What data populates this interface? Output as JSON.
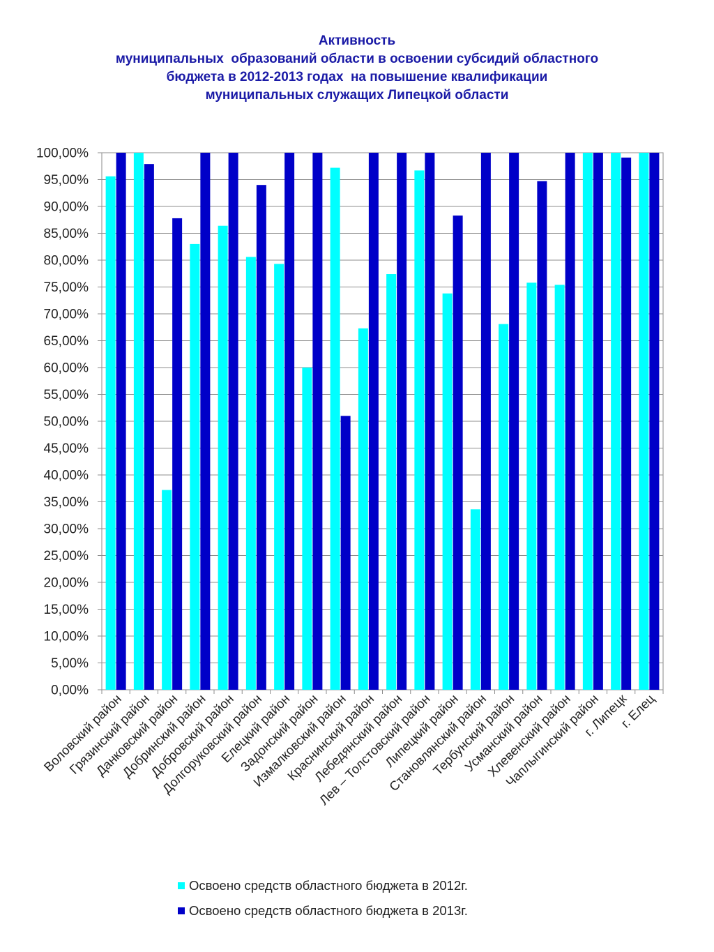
{
  "title": {
    "lines": [
      "Активность",
      "муниципальных  образований области в освоении субсидий областного",
      "бюджета в 2012-2013 годах  на повышение квалификации",
      "муниципальных служащих Липецкой области"
    ]
  },
  "chart_data": {
    "type": "bar",
    "title": "Активность муниципальных  образований области в освоении субсидий областного бюджета в 2012-2013 годах  на повышение квалификации муниципальных служащих Липецкой области",
    "categories": [
      "Воловский район",
      "Грязинский район",
      "Данковский район",
      "Добринский район",
      "Добровский район",
      "Долгоруковский район",
      "Елецкий район",
      "Задонский район",
      "Измалковский район",
      "Краснинский район",
      "Лебедянский район",
      "Лев – Толстовский район",
      "Липецкий район",
      "Становлянский район",
      "Тербунский район",
      "Усманский район",
      "Хлевенский район",
      "Чаплыгинский район",
      "г. Липецк",
      "г. Елец"
    ],
    "series": [
      {
        "name": "Освоено средств областного бюджета в 2012г.",
        "color": "#00FFFF",
        "values": [
          95.6,
          100.0,
          37.2,
          83.0,
          86.4,
          80.6,
          79.3,
          60.0,
          97.2,
          67.3,
          77.4,
          96.7,
          73.8,
          33.6,
          68.1,
          75.8,
          75.4,
          100.0,
          100.0,
          100.0
        ]
      },
      {
        "name": "Освоено средств областного бюджета в 2013г.",
        "color": "#0000C8",
        "values": [
          100.0,
          97.9,
          87.8,
          100.0,
          100.0,
          94.0,
          100.0,
          100.0,
          51.0,
          100.0,
          100.0,
          100.0,
          88.3,
          100.0,
          100.0,
          94.7,
          100.0,
          100.0,
          99.1,
          100.0
        ]
      }
    ],
    "ylim": [
      0,
      100
    ],
    "ytick_step": 5,
    "ytick_labels": [
      "0,00%",
      "5,00%",
      "10,00%",
      "15,00%",
      "20,00%",
      "25,00%",
      "30,00%",
      "35,00%",
      "40,00%",
      "45,00%",
      "50,00%",
      "55,00%",
      "60,00%",
      "65,00%",
      "70,00%",
      "75,00%",
      "80,00%",
      "85,00%",
      "90,00%",
      "95,00%",
      "100,00%"
    ],
    "grid": true,
    "legend_position": "bottom"
  }
}
